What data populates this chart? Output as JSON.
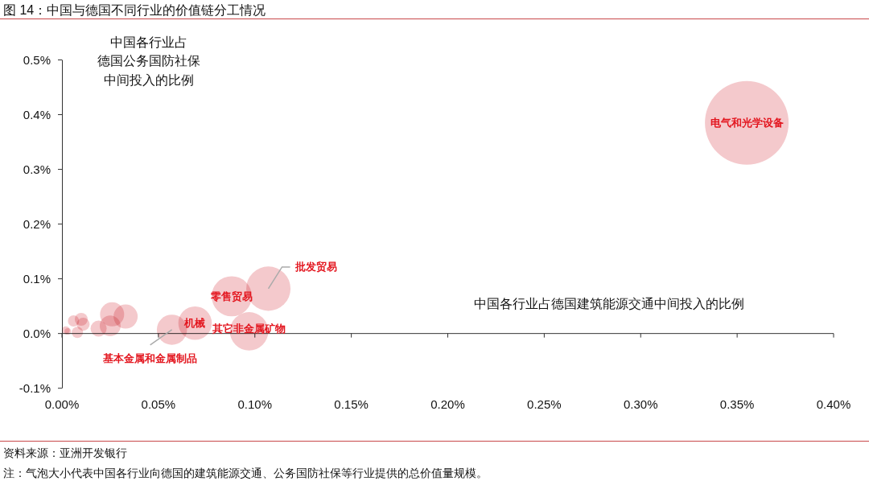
{
  "chart_data": {
    "type": "bubble",
    "title": "图 14：中国与德国不同行业的价值链分工情况",
    "xlabel": "中国各行业占德国建筑能源交通中间投入的比例",
    "ylabel": "中国各行业占德国公务国防社保中间投入的比例",
    "x": [
      0.355,
      0.107,
      0.088,
      0.097,
      0.069,
      0.057,
      0.033,
      0.026,
      0.025,
      0.019,
      0.011,
      0.01,
      0.006,
      0.008,
      0.002,
      0.003
    ],
    "values": [
      0.385,
      0.082,
      0.068,
      0.004,
      0.019,
      0.007,
      0.031,
      0.035,
      0.014,
      0.009,
      0.017,
      0.026,
      0.023,
      0.002,
      0.006,
      0.004
    ],
    "sizes": [
      1,
      0.28,
      0.23,
      0.21,
      0.16,
      0.13,
      0.083,
      0.083,
      0.062,
      0.037,
      0.024,
      0.024,
      0.018,
      0.018,
      0.009,
      0.006
    ],
    "color": "#f4c9cc",
    "xlim": [
      0,
      0.4
    ],
    "ylim": [
      -0.1,
      0.5
    ],
    "xticks": [
      {
        "value": 0,
        "label": "0.00%"
      },
      {
        "value": 0.05,
        "label": "0.05%"
      },
      {
        "value": 0.1,
        "label": "0.10%"
      },
      {
        "value": 0.15,
        "label": "0.15%"
      },
      {
        "value": 0.2,
        "label": "0.20%"
      },
      {
        "value": 0.25,
        "label": "0.25%"
      },
      {
        "value": 0.3,
        "label": "0.30%"
      },
      {
        "value": 0.35,
        "label": "0.35%"
      },
      {
        "value": 0.4,
        "label": "0.40%"
      }
    ],
    "yticks": [
      {
        "value": -0.1,
        "label": "-0.1%"
      },
      {
        "value": 0,
        "label": "0.0%"
      },
      {
        "value": 0.1,
        "label": "0.1%"
      },
      {
        "value": 0.2,
        "label": "0.2%"
      },
      {
        "value": 0.3,
        "label": "0.3%"
      },
      {
        "value": 0.4,
        "label": "0.4%"
      },
      {
        "value": 0.5,
        "label": "0.5%"
      }
    ],
    "annotations": [
      {
        "text": "电气和光学设备",
        "x": 0.355,
        "y": 0.385
      },
      {
        "text": "批发贸易",
        "x": 0.107,
        "y": 0.082
      },
      {
        "text": "零售贸易",
        "x": 0.088,
        "y": 0.068
      },
      {
        "text": "其它非金属矿物",
        "x": 0.097,
        "y": 0.004
      },
      {
        "text": "机械",
        "x": 0.069,
        "y": 0.019
      },
      {
        "text": "基本金属和金属制品",
        "x": 0.057,
        "y": 0.007
      },
      "资料来源：亚洲开发银行",
      "注：气泡大小代表中国各行业向德国的建筑能源交通、公务国防社保等行业提供的总价值量规模。"
    ]
  }
}
